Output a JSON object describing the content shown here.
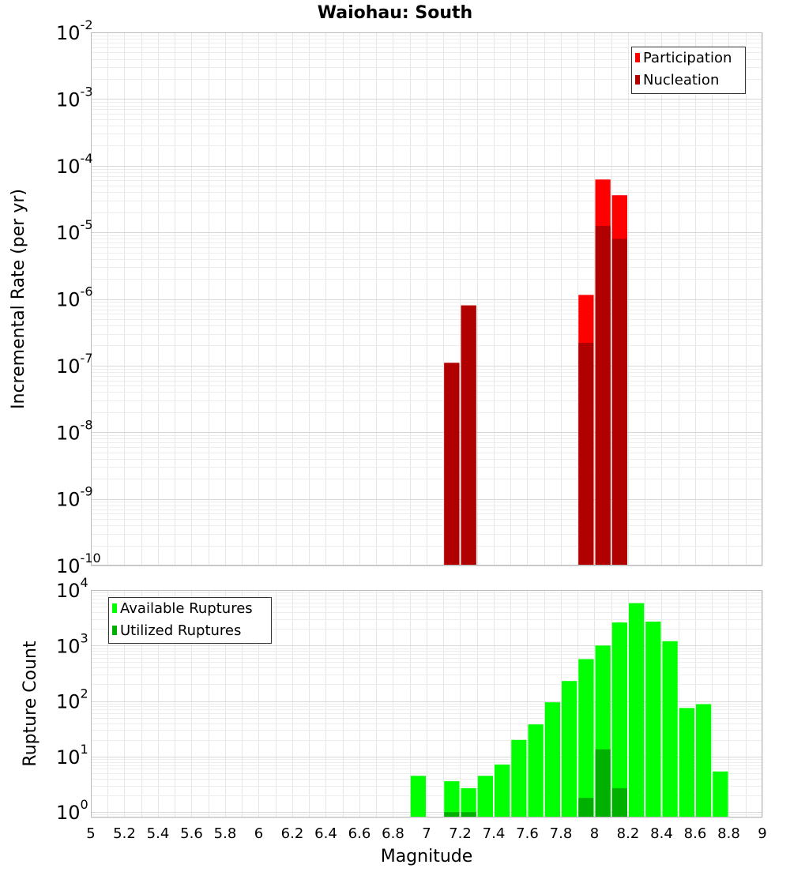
{
  "chart_data": [
    {
      "type": "bar",
      "title": "Waiohau: South",
      "ylabel": "Incremental Rate (per yr)",
      "y_scale": "log",
      "ylim": [
        1e-10,
        0.01
      ],
      "xlim": [
        5,
        9
      ],
      "bin_width": 0.1,
      "grid": true,
      "legend_position": "top-right",
      "y_ticks": [
        {
          "base": "10",
          "exp": "-10",
          "value": 1e-10
        },
        {
          "base": "10",
          "exp": "-9",
          "value": 1e-09
        },
        {
          "base": "10",
          "exp": "-8",
          "value": 1e-08
        },
        {
          "base": "10",
          "exp": "-7",
          "value": 1e-07
        },
        {
          "base": "10",
          "exp": "-6",
          "value": 1e-06
        },
        {
          "base": "10",
          "exp": "-5",
          "value": 1e-05
        },
        {
          "base": "10",
          "exp": "-4",
          "value": 0.0001
        },
        {
          "base": "10",
          "exp": "-3",
          "value": 0.001
        },
        {
          "base": "10",
          "exp": "-2",
          "value": 0.01
        }
      ],
      "series": [
        {
          "name": "Participation",
          "color": "#ff0000",
          "x": [
            7.15,
            7.25,
            7.95,
            8.05,
            8.15
          ],
          "values": [
            1.1e-07,
            8e-07,
            1.15e-06,
            6.2e-05,
            3.6e-05
          ]
        },
        {
          "name": "Nucleation",
          "color": "#b00000",
          "x": [
            7.15,
            7.25,
            7.95,
            8.05,
            8.15
          ],
          "values": [
            1.1e-07,
            8e-07,
            2.2e-07,
            1.25e-05,
            8e-06
          ]
        }
      ]
    },
    {
      "type": "bar",
      "xlabel": "Magnitude",
      "ylabel": "Rupture Count",
      "y_scale": "log",
      "ylim": [
        0.8,
        10000
      ],
      "xlim": [
        5,
        9
      ],
      "bin_width": 0.1,
      "grid": true,
      "legend_position": "top-left",
      "y_ticks": [
        {
          "base": "10",
          "exp": "0",
          "value": 1
        },
        {
          "base": "10",
          "exp": "1",
          "value": 10
        },
        {
          "base": "10",
          "exp": "2",
          "value": 100
        },
        {
          "base": "10",
          "exp": "3",
          "value": 1000
        },
        {
          "base": "10",
          "exp": "4",
          "value": 10000
        }
      ],
      "x_ticks": [
        "5",
        "5.2",
        "5.4",
        "5.6",
        "5.8",
        "6",
        "6.2",
        "6.4",
        "6.6",
        "6.8",
        "7",
        "7.2",
        "7.4",
        "7.6",
        "7.8",
        "8",
        "8.2",
        "8.4",
        "8.6",
        "8.8",
        "9"
      ],
      "series": [
        {
          "name": "Available Ruptures",
          "color": "#00ff00",
          "x": [
            6.95,
            7.15,
            7.25,
            7.35,
            7.45,
            7.55,
            7.65,
            7.75,
            7.85,
            7.95,
            8.05,
            8.15,
            8.25,
            8.35,
            8.45,
            8.55,
            8.65,
            8.75
          ],
          "values": [
            4.5,
            3.6,
            2.7,
            4.5,
            7.2,
            20,
            38,
            95,
            230,
            570,
            1000,
            2600,
            5800,
            2700,
            1200,
            75,
            88,
            5.4
          ]
        },
        {
          "name": "Utilized Ruptures",
          "color": "#00b000",
          "x": [
            7.15,
            7.25,
            7.95,
            8.05,
            8.15
          ],
          "values": [
            1,
            1,
            1.8,
            13.5,
            2.7
          ]
        }
      ]
    }
  ]
}
